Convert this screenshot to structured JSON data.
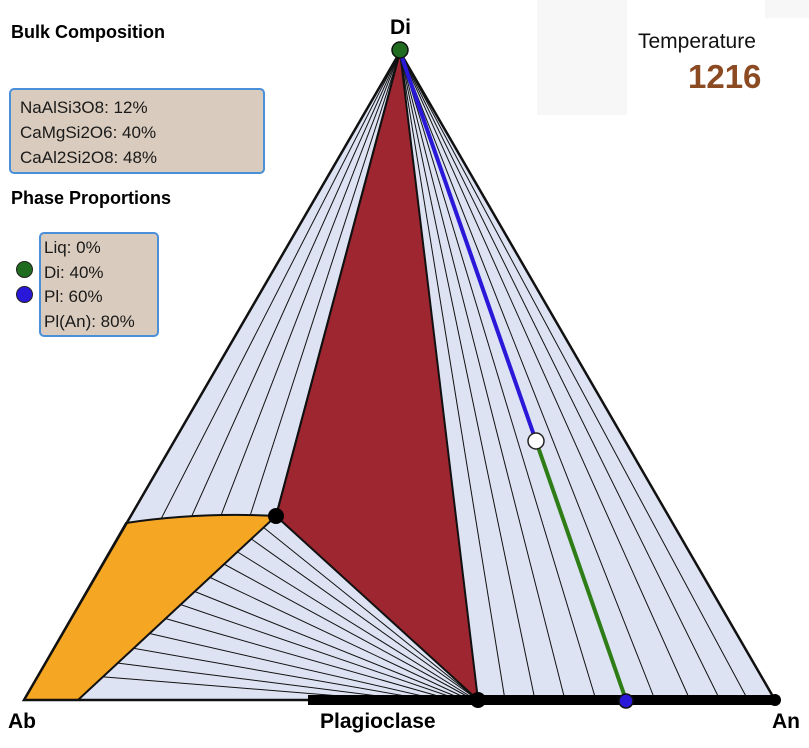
{
  "bulk_composition": {
    "title": "Bulk Composition",
    "lines": [
      "NaAlSi3O8: 12%",
      "CaMgSi2O6: 40%",
      "CaAl2Si2O8: 48%"
    ]
  },
  "phase_proportions": {
    "title": "Phase Proportions",
    "lines": [
      "Liq: 0%",
      "Di: 40%",
      "Pl: 60%",
      "Pl(An): 80%"
    ],
    "dot_colors": {
      "Di": "#1f6b1f",
      "Pl": "#2a18d8"
    }
  },
  "temperature": {
    "label": "Temperature",
    "value": "1216"
  },
  "labels": {
    "top": "Di",
    "left": "Ab",
    "right": "An",
    "bottom": "Plagioclase"
  },
  "colors": {
    "liquid_field": "#f5a623",
    "three_phase_field": "#9e2630",
    "two_phase_field": "#dde3f3",
    "tie_line_di": "#2a18d8",
    "tie_line_pl": "#2f7d17"
  }
}
